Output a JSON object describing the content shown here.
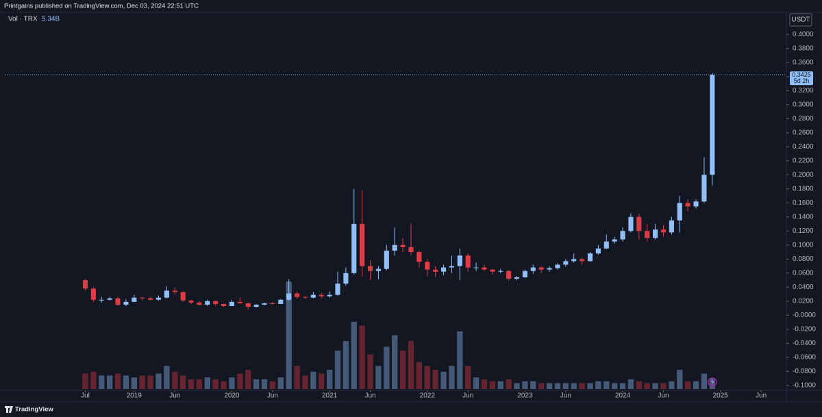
{
  "chart_data": {
    "type": "candlestick",
    "header": "Printgains published on TradingView.com, Dec 03, 2024 22:51 UTC",
    "volume_title": "Vol · TRX",
    "volume_value_label": "5.34B",
    "unit": "USDT",
    "last_price": 0.3425,
    "countdown": "5d 2h",
    "footer": "TradingView",
    "up_color": "#90bff9",
    "down_color": "#e03a45",
    "x": [
      0,
      1,
      2,
      3,
      4,
      5,
      6,
      7,
      8,
      9,
      10,
      11,
      12,
      13,
      14,
      15,
      16,
      17,
      18,
      19,
      20,
      21,
      22,
      23,
      24,
      25,
      26,
      27,
      28,
      29,
      30,
      31,
      32,
      33,
      34,
      35,
      36,
      37,
      38,
      39,
      40,
      41,
      42,
      43,
      44,
      45,
      46,
      47,
      48,
      49,
      50,
      51,
      52,
      53,
      54,
      55,
      56,
      57,
      58,
      59,
      60,
      61,
      62,
      63,
      64,
      65,
      66,
      67,
      68,
      69,
      70,
      71,
      72,
      73,
      74,
      75,
      76,
      77
    ],
    "open": [
      0.05,
      0.038,
      0.022,
      0.022,
      0.024,
      0.015,
      0.019,
      0.025,
      0.024,
      0.022,
      0.025,
      0.035,
      0.033,
      0.021,
      0.018,
      0.015,
      0.02,
      0.016,
      0.013,
      0.019,
      0.017,
      0.012,
      0.015,
      0.017,
      0.016,
      0.022,
      0.031,
      0.026,
      0.025,
      0.029,
      0.027,
      0.029,
      0.045,
      0.06,
      0.13,
      0.07,
      0.063,
      0.066,
      0.092,
      0.1,
      0.097,
      0.09,
      0.076,
      0.065,
      0.062,
      0.068,
      0.07,
      0.085,
      0.068,
      0.068,
      0.065,
      0.062,
      0.063,
      0.052,
      0.054,
      0.063,
      0.068,
      0.065,
      0.067,
      0.072,
      0.077,
      0.08,
      0.077,
      0.088,
      0.095,
      0.105,
      0.108,
      0.12,
      0.14,
      0.12,
      0.11,
      0.122,
      0.118,
      0.135,
      0.16,
      0.155,
      0.162,
      0.2
    ],
    "high": [
      0.052,
      0.04,
      0.026,
      0.026,
      0.026,
      0.023,
      0.029,
      0.026,
      0.026,
      0.028,
      0.041,
      0.04,
      0.034,
      0.022,
      0.02,
      0.022,
      0.021,
      0.016,
      0.022,
      0.025,
      0.018,
      0.016,
      0.018,
      0.019,
      0.023,
      0.051,
      0.034,
      0.027,
      0.033,
      0.032,
      0.034,
      0.062,
      0.068,
      0.18,
      0.178,
      0.078,
      0.07,
      0.1,
      0.125,
      0.11,
      0.13,
      0.092,
      0.08,
      0.07,
      0.072,
      0.085,
      0.095,
      0.088,
      0.075,
      0.072,
      0.066,
      0.066,
      0.064,
      0.056,
      0.065,
      0.072,
      0.07,
      0.07,
      0.074,
      0.08,
      0.088,
      0.082,
      0.09,
      0.1,
      0.115,
      0.112,
      0.125,
      0.145,
      0.145,
      0.13,
      0.13,
      0.128,
      0.14,
      0.17,
      0.165,
      0.165,
      0.225,
      0.345
    ],
    "low": [
      0.035,
      0.019,
      0.018,
      0.021,
      0.013,
      0.013,
      0.019,
      0.021,
      0.021,
      0.021,
      0.024,
      0.029,
      0.019,
      0.016,
      0.014,
      0.013,
      0.013,
      0.012,
      0.013,
      0.017,
      0.008,
      0.011,
      0.014,
      0.015,
      0.016,
      0.021,
      0.023,
      0.023,
      0.024,
      0.024,
      0.025,
      0.028,
      0.042,
      0.058,
      0.055,
      0.05,
      0.051,
      0.064,
      0.085,
      0.09,
      0.085,
      0.068,
      0.055,
      0.055,
      0.057,
      0.06,
      0.05,
      0.062,
      0.063,
      0.063,
      0.058,
      0.06,
      0.049,
      0.05,
      0.053,
      0.059,
      0.06,
      0.062,
      0.065,
      0.069,
      0.075,
      0.072,
      0.076,
      0.086,
      0.094,
      0.102,
      0.105,
      0.118,
      0.108,
      0.105,
      0.108,
      0.112,
      0.115,
      0.118,
      0.148,
      0.152,
      0.16,
      0.185
    ],
    "close": [
      0.038,
      0.022,
      0.022,
      0.024,
      0.015,
      0.019,
      0.025,
      0.024,
      0.022,
      0.025,
      0.035,
      0.033,
      0.021,
      0.018,
      0.015,
      0.02,
      0.016,
      0.013,
      0.019,
      0.017,
      0.012,
      0.015,
      0.017,
      0.016,
      0.022,
      0.031,
      0.026,
      0.025,
      0.029,
      0.027,
      0.029,
      0.045,
      0.06,
      0.13,
      0.07,
      0.063,
      0.066,
      0.092,
      0.1,
      0.097,
      0.09,
      0.076,
      0.065,
      0.062,
      0.068,
      0.07,
      0.085,
      0.068,
      0.068,
      0.065,
      0.062,
      0.063,
      0.052,
      0.054,
      0.063,
      0.068,
      0.065,
      0.067,
      0.072,
      0.077,
      0.08,
      0.077,
      0.088,
      0.095,
      0.105,
      0.108,
      0.12,
      0.14,
      0.12,
      0.11,
      0.122,
      0.118,
      0.135,
      0.16,
      0.155,
      0.162,
      0.2,
      0.3425
    ],
    "volume": [
      8,
      9,
      7,
      7,
      8,
      7,
      6,
      7,
      7,
      8,
      12,
      9,
      7,
      5,
      5,
      6,
      5,
      4,
      6,
      8,
      10,
      5,
      5,
      4,
      6,
      56,
      12,
      7,
      9,
      8,
      10,
      20,
      25,
      35,
      33,
      18,
      12,
      22,
      28,
      20,
      25,
      14,
      12,
      10,
      9,
      12,
      30,
      12,
      6,
      5,
      4,
      4,
      5,
      3,
      4,
      4,
      3,
      3,
      3,
      3,
      3,
      3,
      3,
      4,
      4,
      3,
      3,
      5,
      4,
      3,
      3,
      3,
      4,
      10,
      4,
      4,
      8,
      5.34
    ],
    "volume_lim": [
      0,
      60
    ],
    "xlim": [
      -9.8,
      86.1
    ],
    "xticks": [
      {
        "value": 0,
        "label": "Jul"
      },
      {
        "value": 6,
        "label": "2019"
      },
      {
        "value": 11,
        "label": "Jun"
      },
      {
        "value": 18,
        "label": "2020"
      },
      {
        "value": 23,
        "label": "Jun"
      },
      {
        "value": 30,
        "label": "2021"
      },
      {
        "value": 35,
        "label": "Jun"
      },
      {
        "value": 42,
        "label": "2022"
      },
      {
        "value": 47,
        "label": "Jun"
      },
      {
        "value": 54,
        "label": "2023"
      },
      {
        "value": 59,
        "label": "Jun"
      },
      {
        "value": 66,
        "label": "2024"
      },
      {
        "value": 71,
        "label": "Jun"
      },
      {
        "value": 78,
        "label": "2025"
      },
      {
        "value": 83,
        "label": "Jun"
      }
    ],
    "ylim": [
      -0.105,
      0.41
    ],
    "yticks": [
      {
        "value": 0.4,
        "label": "0.4000"
      },
      {
        "value": 0.38,
        "label": "0.3800"
      },
      {
        "value": 0.36,
        "label": "0.3600"
      },
      {
        "value": 0.34,
        "label": "0.3400"
      },
      {
        "value": 0.32,
        "label": "0.3200"
      },
      {
        "value": 0.3,
        "label": "0.3000"
      },
      {
        "value": 0.28,
        "label": "0.2800"
      },
      {
        "value": 0.26,
        "label": "0.2600"
      },
      {
        "value": 0.24,
        "label": "0.2400"
      },
      {
        "value": 0.22,
        "label": "0.2200"
      },
      {
        "value": 0.2,
        "label": "0.2000"
      },
      {
        "value": 0.18,
        "label": "0.1800"
      },
      {
        "value": 0.16,
        "label": "0.1600"
      },
      {
        "value": 0.14,
        "label": "0.1400"
      },
      {
        "value": 0.12,
        "label": "0.1200"
      },
      {
        "value": 0.1,
        "label": "0.1000"
      },
      {
        "value": 0.08,
        "label": "0.0800"
      },
      {
        "value": 0.06,
        "label": "0.0600"
      },
      {
        "value": 0.04,
        "label": "0.0400"
      },
      {
        "value": 0.02,
        "label": "0.0200"
      },
      {
        "value": 0,
        "label": "-0.0000"
      },
      {
        "value": -0.02,
        "label": "-0.0200"
      },
      {
        "value": -0.04,
        "label": "-0.0400"
      },
      {
        "value": -0.06,
        "label": "-0.0600"
      },
      {
        "value": -0.08,
        "label": "-0.0800"
      },
      {
        "value": -0.1,
        "label": "-0.1000"
      }
    ],
    "grid": false
  }
}
